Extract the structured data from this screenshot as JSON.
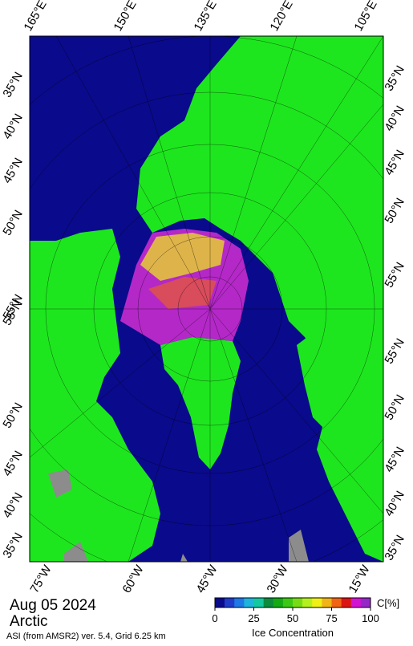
{
  "map": {
    "top_labels": [
      "165°E",
      "150°E",
      "135°E",
      "120°E",
      "105°E"
    ],
    "bottom_labels": [
      "75°W",
      "60°W",
      "45°W",
      "30°W",
      "15°W"
    ],
    "left_labels": [
      "35°N",
      "40°N",
      "45°N",
      "50°N",
      "55°N",
      "55°N",
      "50°N",
      "45°N",
      "40°N",
      "35°N"
    ],
    "right_labels": [
      "35°N",
      "40°N",
      "45°N",
      "50°N",
      "55°N",
      "55°N",
      "50°N",
      "45°N",
      "40°N",
      "35°N"
    ]
  },
  "date": "Aug 05 2024",
  "region": "Arctic",
  "source": "ASI (from AMSR2) ver. 5.4,  Grid 6.25 km",
  "colorbar": {
    "label": "Ice Concentration",
    "unit": "C[%]",
    "lim": [
      0,
      100
    ],
    "ticks": [
      0,
      25,
      50,
      75,
      100
    ],
    "colors": [
      "#0a0a8c",
      "#1e3cc8",
      "#1e78e6",
      "#1eb4dc",
      "#14c8a0",
      "#0a8c3c",
      "#14aa14",
      "#3cc814",
      "#78dc14",
      "#b4f01e",
      "#f0f014",
      "#f0b414",
      "#f06414",
      "#dc1414",
      "#d214d2",
      "#9628c8"
    ]
  }
}
